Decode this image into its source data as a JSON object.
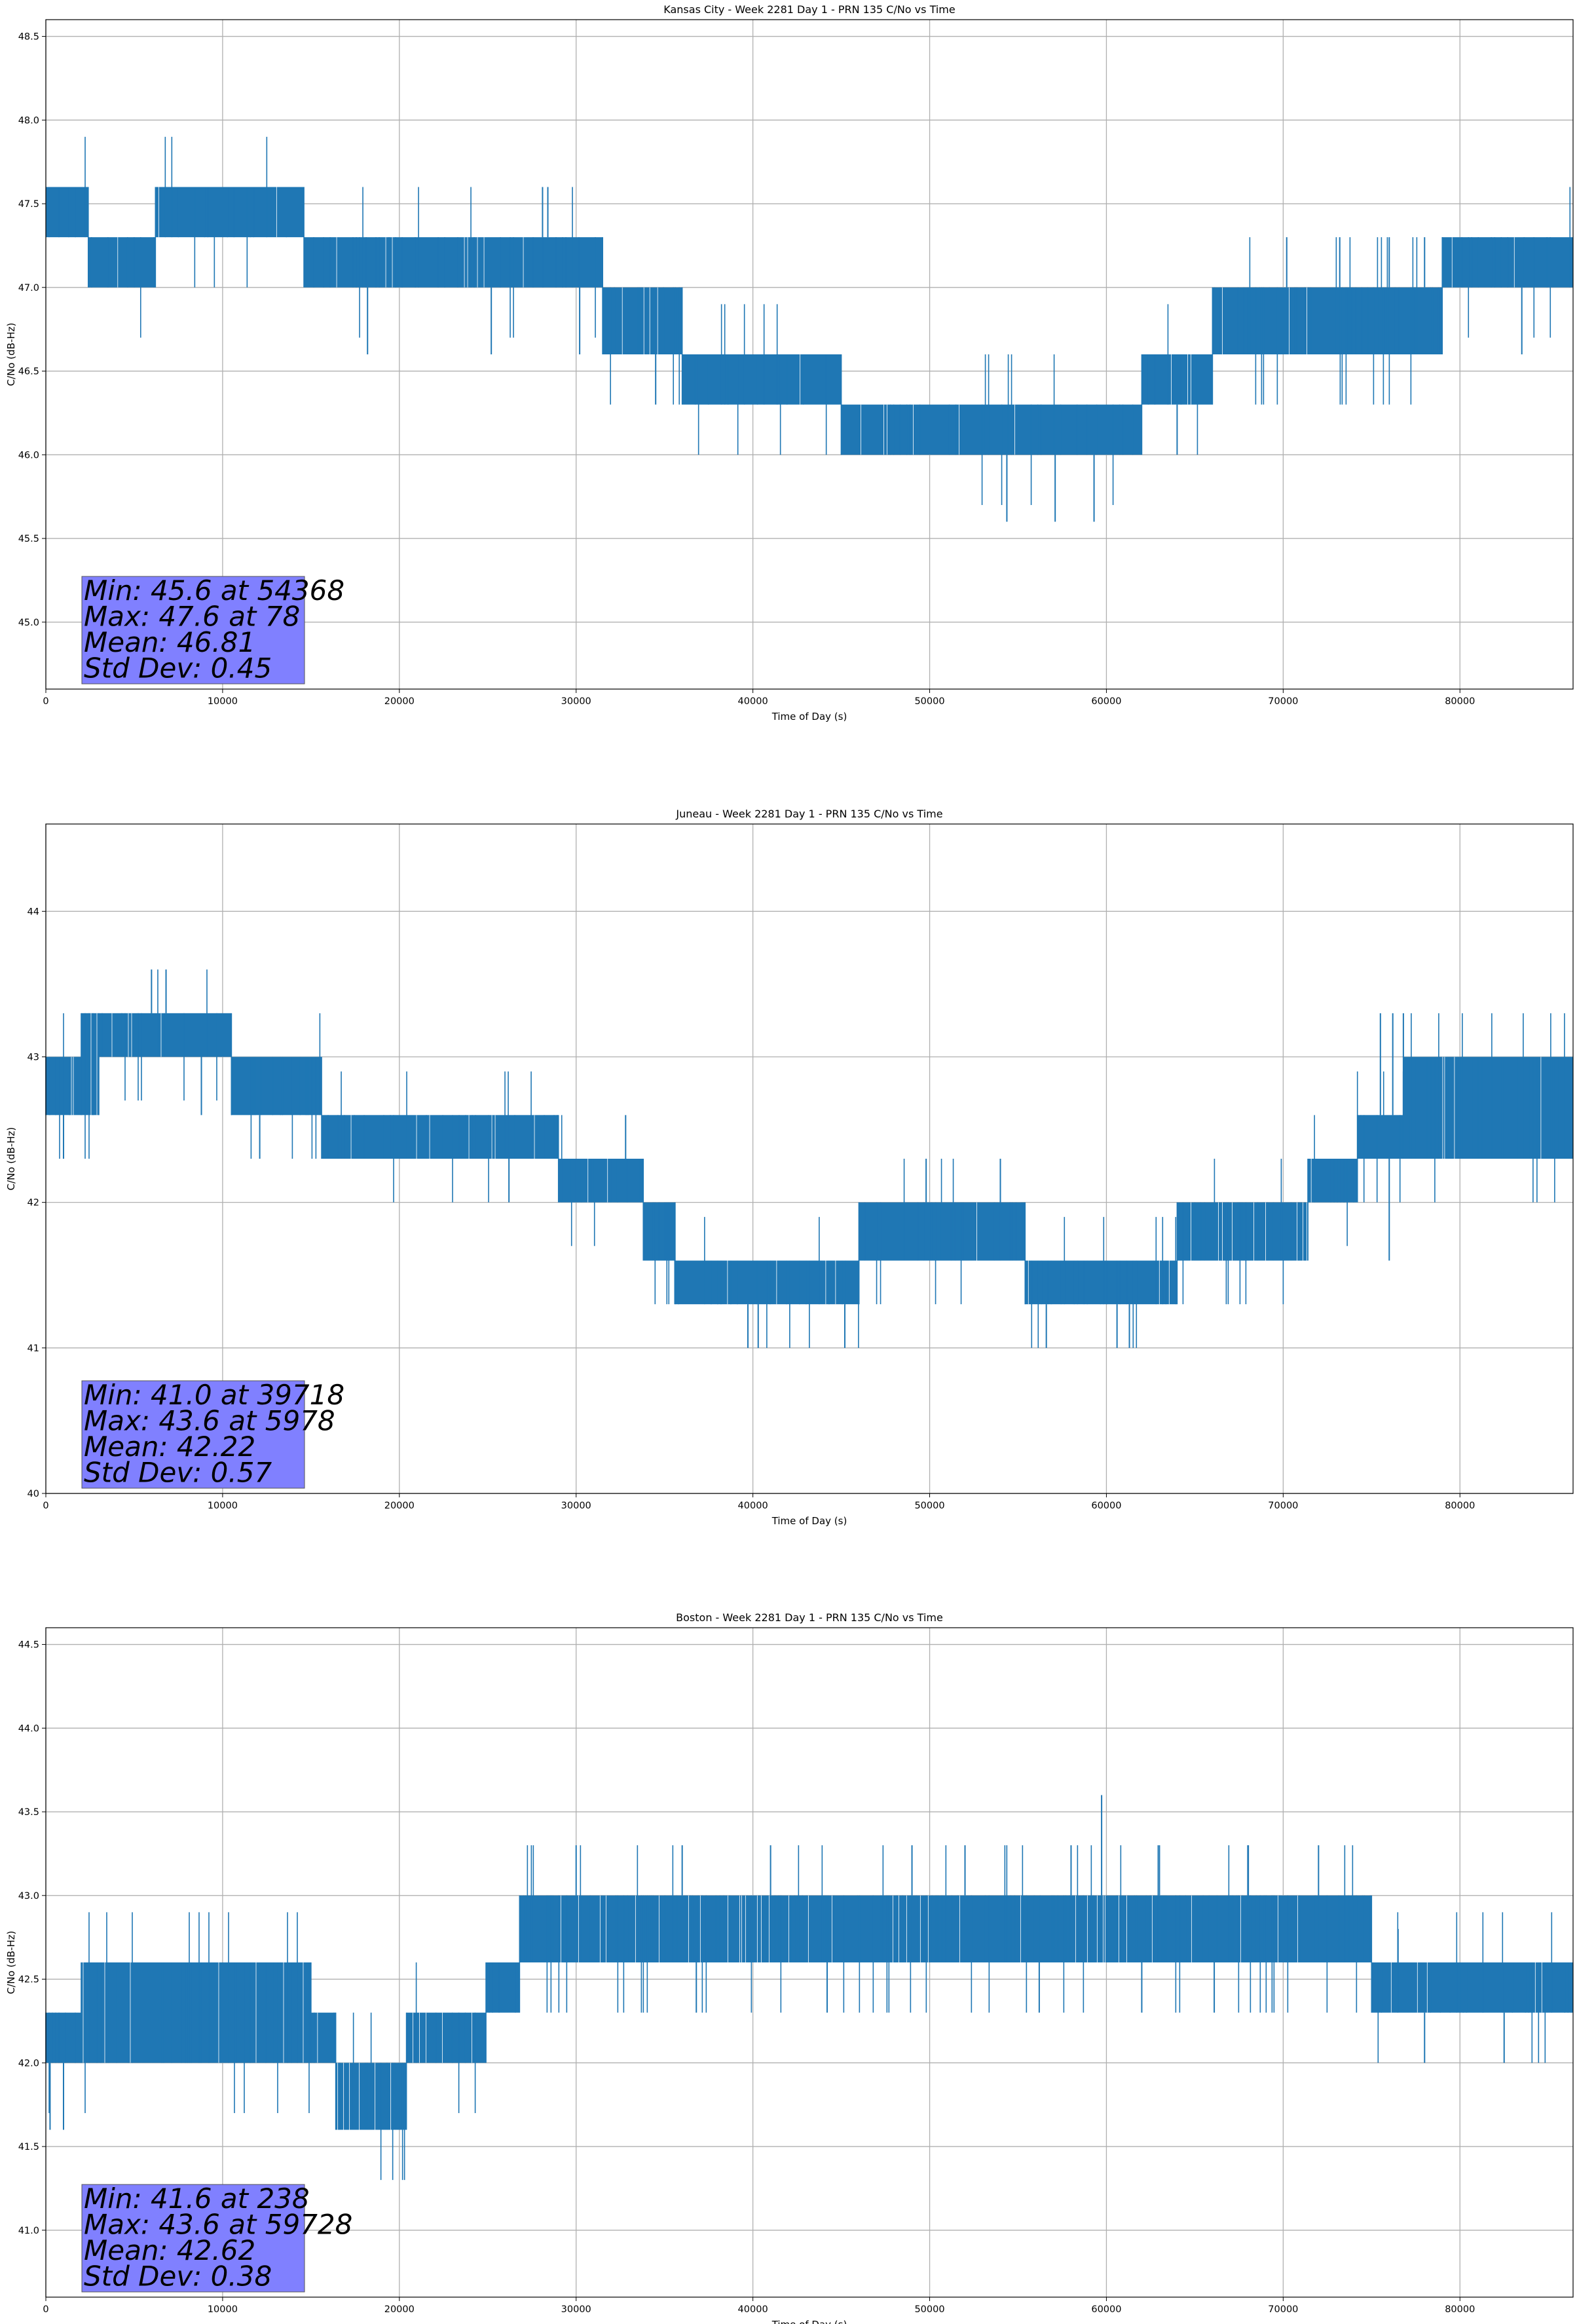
{
  "chart_data": [
    {
      "type": "line",
      "title": "Kansas City - Week 2281 Day 1 - PRN 135 C/No vs Time",
      "xlabel": "Time of Day (s)",
      "ylabel": "C/No (dB-Hz)",
      "xlim": [
        0,
        86400
      ],
      "ylim": [
        44.6,
        48.6
      ],
      "xticks": [
        0,
        10000,
        20000,
        30000,
        40000,
        50000,
        60000,
        70000,
        80000
      ],
      "xtick_labels": [
        "0",
        "10000",
        "20000",
        "30000",
        "40000",
        "50000",
        "60000",
        "70000",
        "80000"
      ],
      "yticks": [
        45.0,
        45.5,
        46.0,
        46.5,
        47.0,
        47.5,
        48.0,
        48.5
      ],
      "ytick_labels": [
        "45.0",
        "45.5",
        "46.0",
        "46.5",
        "47.0",
        "47.5",
        "48.0",
        "48.5"
      ],
      "grid": true,
      "series_color": "#1f77b4",
      "band": [
        {
          "x": [
            0,
            2400
          ],
          "lo": 47.3,
          "hi": 47.6
        },
        {
          "x": [
            2400,
            6200
          ],
          "lo": 47.0,
          "hi": 47.3
        },
        {
          "x": [
            6200,
            14600
          ],
          "lo": 47.3,
          "hi": 47.6
        },
        {
          "x": [
            14600,
            31500
          ],
          "lo": 47.0,
          "hi": 47.3
        },
        {
          "x": [
            31500,
            36000
          ],
          "lo": 46.6,
          "hi": 47.0
        },
        {
          "x": [
            36000,
            45000
          ],
          "lo": 46.3,
          "hi": 46.6
        },
        {
          "x": [
            45000,
            62000
          ],
          "lo": 46.0,
          "hi": 46.3
        },
        {
          "x": [
            62000,
            66000
          ],
          "lo": 46.3,
          "hi": 46.6
        },
        {
          "x": [
            66000,
            79000
          ],
          "lo": 46.6,
          "hi": 47.0
        },
        {
          "x": [
            79000,
            86400
          ],
          "lo": 47.0,
          "hi": 47.3
        }
      ],
      "spikes": [
        {
          "x": 28100,
          "y": 47.6
        },
        {
          "x": 28400,
          "y": 47.6
        },
        {
          "x": 18200,
          "y": 46.6
        },
        {
          "x": 25200,
          "y": 46.6
        },
        {
          "x": 30200,
          "y": 46.6
        },
        {
          "x": 34500,
          "y": 46.3
        },
        {
          "x": 54368,
          "y": 45.6
        },
        {
          "x": 57100,
          "y": 45.6
        },
        {
          "x": 59300,
          "y": 45.6
        },
        {
          "x": 64000,
          "y": 46.0
        },
        {
          "x": 70200,
          "y": 47.3
        },
        {
          "x": 73200,
          "y": 47.3
        },
        {
          "x": 76000,
          "y": 47.3
        },
        {
          "x": 78000,
          "y": 47.3
        },
        {
          "x": 83500,
          "y": 46.6
        }
      ],
      "stats": {
        "min": "Min: 45.6 at 54368",
        "max": "Max: 47.6 at 78",
        "mean": "Mean: 46.81",
        "std": "Std Dev: 0.45"
      }
    },
    {
      "type": "line",
      "title": "Juneau - Week 2281 Day 1 - PRN 135 C/No vs Time",
      "xlabel": "Time of Day (s)",
      "ylabel": "C/No (dB-Hz)",
      "xlim": [
        0,
        86400
      ],
      "ylim": [
        40.0,
        44.6
      ],
      "xticks": [
        0,
        10000,
        20000,
        30000,
        40000,
        50000,
        60000,
        70000,
        80000
      ],
      "xtick_labels": [
        "0",
        "10000",
        "20000",
        "30000",
        "40000",
        "50000",
        "60000",
        "70000",
        "80000"
      ],
      "yticks": [
        40,
        41,
        42,
        43,
        44
      ],
      "ytick_labels": [
        "40",
        "41",
        "42",
        "43",
        "44"
      ],
      "grid": true,
      "series_color": "#1f77b4",
      "band": [
        {
          "x": [
            0,
            2000
          ],
          "lo": 42.6,
          "hi": 43.0
        },
        {
          "x": [
            2000,
            3000
          ],
          "lo": 42.6,
          "hi": 43.3
        },
        {
          "x": [
            3000,
            10500
          ],
          "lo": 43.0,
          "hi": 43.3
        },
        {
          "x": [
            10500,
            15600
          ],
          "lo": 42.6,
          "hi": 43.0
        },
        {
          "x": [
            15600,
            29000
          ],
          "lo": 42.3,
          "hi": 42.6
        },
        {
          "x": [
            29000,
            33800
          ],
          "lo": 42.0,
          "hi": 42.3
        },
        {
          "x": [
            33800,
            35600
          ],
          "lo": 41.6,
          "hi": 42.0
        },
        {
          "x": [
            35600,
            46000
          ],
          "lo": 41.3,
          "hi": 41.6
        },
        {
          "x": [
            46000,
            55400
          ],
          "lo": 41.6,
          "hi": 42.0
        },
        {
          "x": [
            55400,
            64000
          ],
          "lo": 41.3,
          "hi": 41.6
        },
        {
          "x": [
            64000,
            71400
          ],
          "lo": 41.6,
          "hi": 42.0
        },
        {
          "x": [
            71400,
            74200
          ],
          "lo": 42.0,
          "hi": 42.3
        },
        {
          "x": [
            74200,
            76800
          ],
          "lo": 42.3,
          "hi": 42.6
        },
        {
          "x": [
            76800,
            86400
          ],
          "lo": 42.3,
          "hi": 43.0
        }
      ],
      "spikes": [
        {
          "x": 5978,
          "y": 43.6
        },
        {
          "x": 6800,
          "y": 43.6
        },
        {
          "x": 1000,
          "y": 42.3
        },
        {
          "x": 8800,
          "y": 42.6
        },
        {
          "x": 12100,
          "y": 42.3
        },
        {
          "x": 26200,
          "y": 42.0
        },
        {
          "x": 39718,
          "y": 41.0
        },
        {
          "x": 40300,
          "y": 41.0
        },
        {
          "x": 45200,
          "y": 41.0
        },
        {
          "x": 56600,
          "y": 41.0
        },
        {
          "x": 60600,
          "y": 41.0
        },
        {
          "x": 61300,
          "y": 41.0
        },
        {
          "x": 75500,
          "y": 43.3
        },
        {
          "x": 76200,
          "y": 43.3
        },
        {
          "x": 76800,
          "y": 43.3
        },
        {
          "x": 76000,
          "y": 41.6
        },
        {
          "x": 49800,
          "y": 42.3
        },
        {
          "x": 54000,
          "y": 42.3
        },
        {
          "x": 32800,
          "y": 42.6
        }
      ],
      "stats": {
        "min": "Min: 41.0 at 39718",
        "max": "Max: 43.6 at 5978",
        "mean": "Mean: 42.22",
        "std": "Std Dev: 0.57"
      }
    },
    {
      "type": "line",
      "title": "Boston - Week 2281 Day 1 - PRN 135 C/No vs Time",
      "xlabel": "Time of Day (s)",
      "ylabel": "C/No (dB-Hz)",
      "xlim": [
        0,
        86400
      ],
      "ylim": [
        40.6,
        44.6
      ],
      "xticks": [
        0,
        10000,
        20000,
        30000,
        40000,
        50000,
        60000,
        70000,
        80000
      ],
      "xtick_labels": [
        "0",
        "10000",
        "20000",
        "30000",
        "40000",
        "50000",
        "60000",
        "70000",
        "80000"
      ],
      "yticks": [
        41.0,
        41.5,
        42.0,
        42.5,
        43.0,
        43.5,
        44.0,
        44.5
      ],
      "ytick_labels": [
        "41.0",
        "41.5",
        "42.0",
        "42.5",
        "43.0",
        "43.5",
        "44.0",
        "44.5"
      ],
      "grid": true,
      "series_color": "#1f77b4",
      "band": [
        {
          "x": [
            0,
            2000
          ],
          "lo": 42.0,
          "hi": 42.3
        },
        {
          "x": [
            2000,
            15000
          ],
          "lo": 42.0,
          "hi": 42.6
        },
        {
          "x": [
            15000,
            16400
          ],
          "lo": 42.0,
          "hi": 42.3
        },
        {
          "x": [
            16400,
            20400
          ],
          "lo": 41.6,
          "hi": 42.0
        },
        {
          "x": [
            20400,
            24900
          ],
          "lo": 42.0,
          "hi": 42.3
        },
        {
          "x": [
            24900,
            26800
          ],
          "lo": 42.3,
          "hi": 42.6
        },
        {
          "x": [
            26800,
            75000
          ],
          "lo": 42.6,
          "hi": 43.0
        },
        {
          "x": [
            75000,
            86400
          ],
          "lo": 42.3,
          "hi": 42.6
        }
      ],
      "spikes": [
        {
          "x": 238,
          "y": 41.6
        },
        {
          "x": 1000,
          "y": 41.6
        },
        {
          "x": 59728,
          "y": 43.6
        },
        {
          "x": 30000,
          "y": 43.3
        },
        {
          "x": 36000,
          "y": 43.3
        },
        {
          "x": 41000,
          "y": 43.3
        },
        {
          "x": 49000,
          "y": 43.3
        },
        {
          "x": 52000,
          "y": 43.3
        },
        {
          "x": 58000,
          "y": 43.3
        },
        {
          "x": 63000,
          "y": 43.3
        },
        {
          "x": 68000,
          "y": 43.3
        },
        {
          "x": 72000,
          "y": 43.3
        },
        {
          "x": 36800,
          "y": 42.3
        },
        {
          "x": 44200,
          "y": 42.3
        },
        {
          "x": 56200,
          "y": 42.3
        },
        {
          "x": 62000,
          "y": 42.3
        },
        {
          "x": 66100,
          "y": 42.3
        },
        {
          "x": 76500,
          "y": 42.8
        },
        {
          "x": 78000,
          "y": 42.0
        },
        {
          "x": 82500,
          "y": 42.0
        }
      ],
      "stats": {
        "min": "Min: 41.6 at 238",
        "max": "Max: 43.6 at 59728",
        "mean": "Mean: 42.62",
        "std": "Std Dev: 0.38"
      }
    }
  ]
}
